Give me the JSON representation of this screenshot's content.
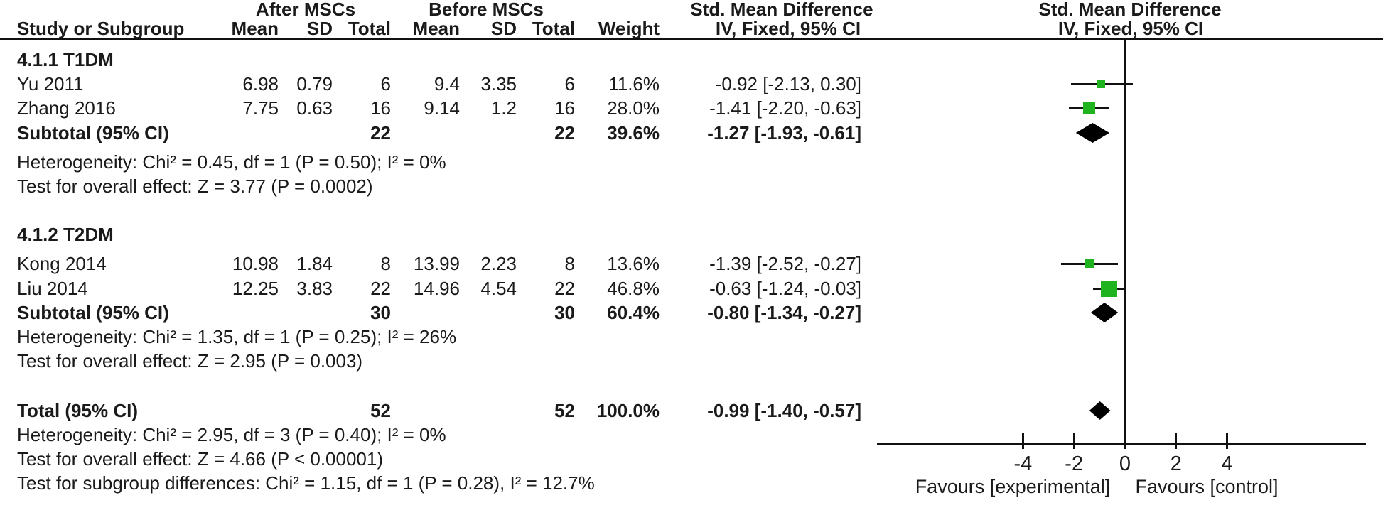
{
  "figure_title": "Forest plot: Std. Mean Difference, After MSCs vs Before MSCs",
  "header": {
    "group1": "After MSCs",
    "group2": "Before MSCs",
    "effect1": "Std. Mean Difference",
    "effect2": "Std. Mean Difference",
    "col_study": "Study or Subgroup",
    "col_mean1": "Mean",
    "col_sd1": "SD",
    "col_total1": "Total",
    "col_mean2": "Mean",
    "col_sd2": "SD",
    "col_total2": "Total",
    "col_weight": "Weight",
    "col_ci1": "IV, Fixed, 95% CI",
    "col_ci2": "IV, Fixed, 95% CI"
  },
  "colors": {
    "square_green": "#1fb41f",
    "diamond_black": "#000000",
    "line_black": "#111111",
    "text": "#1a1a1a"
  },
  "chart_data": {
    "type": "forest",
    "effect_measure": "Std. Mean Difference",
    "model": "IV, Fixed, 95% CI",
    "x_ticks": [
      -4,
      -2,
      0,
      2,
      4
    ],
    "xlim": [
      -9.7,
      9.4
    ],
    "favours_left": "Favours [experimental]",
    "favours_right": "Favours [control]",
    "rows": [
      {
        "kind": "group",
        "label": "4.1.1 T1DM"
      },
      {
        "kind": "study",
        "label": "Yu 2011",
        "mean1": "6.98",
        "sd1": "0.79",
        "n1": "6",
        "mean2": "9.4",
        "sd2": "3.35",
        "n2": "6",
        "weight": "11.6%",
        "ci_text": "-0.92 [-2.13, 0.30]",
        "est": -0.92,
        "lo": -2.13,
        "hi": 0.3,
        "w": 11.6
      },
      {
        "kind": "study",
        "label": "Zhang 2016",
        "mean1": "7.75",
        "sd1": "0.63",
        "n1": "16",
        "mean2": "9.14",
        "sd2": "1.2",
        "n2": "16",
        "weight": "28.0%",
        "ci_text": "-1.41 [-2.20, -0.63]",
        "est": -1.41,
        "lo": -2.2,
        "hi": -0.63,
        "w": 28.0
      },
      {
        "kind": "subtotal",
        "label": "Subtotal (95% CI)",
        "n1": "22",
        "n2": "22",
        "weight": "39.6%",
        "ci_text": "-1.27 [-1.93, -0.61]",
        "est": -1.27,
        "lo": -1.93,
        "hi": -0.61
      },
      {
        "kind": "stat",
        "label": "Heterogeneity: Chi² = 0.45, df = 1 (P = 0.50); I² = 0%"
      },
      {
        "kind": "stat",
        "label": "Test for overall effect: Z = 3.77 (P = 0.0002)"
      },
      {
        "kind": "spacer"
      },
      {
        "kind": "group",
        "label": "4.1.2 T2DM"
      },
      {
        "kind": "study",
        "label": "Kong 2014",
        "mean1": "10.98",
        "sd1": "1.84",
        "n1": "8",
        "mean2": "13.99",
        "sd2": "2.23",
        "n2": "8",
        "weight": "13.6%",
        "ci_text": "-1.39 [-2.52, -0.27]",
        "est": -1.39,
        "lo": -2.52,
        "hi": -0.27,
        "w": 13.6
      },
      {
        "kind": "study",
        "label": "Liu 2014",
        "mean1": "12.25",
        "sd1": "3.83",
        "n1": "22",
        "mean2": "14.96",
        "sd2": "4.54",
        "n2": "22",
        "weight": "46.8%",
        "ci_text": "-0.63 [-1.24, -0.03]",
        "est": -0.63,
        "lo": -1.24,
        "hi": -0.03,
        "w": 46.8
      },
      {
        "kind": "subtotal",
        "label": "Subtotal (95% CI)",
        "n1": "30",
        "n2": "30",
        "weight": "60.4%",
        "ci_text": "-0.80 [-1.34, -0.27]",
        "est": -0.8,
        "lo": -1.34,
        "hi": -0.27
      },
      {
        "kind": "stat",
        "label": "Heterogeneity: Chi² = 1.35, df = 1 (P = 0.25); I² = 26%"
      },
      {
        "kind": "stat",
        "label": "Test for overall effect: Z = 2.95 (P = 0.003)"
      },
      {
        "kind": "spacer"
      },
      {
        "kind": "total",
        "label": "Total (95% CI)",
        "n1": "52",
        "n2": "52",
        "weight": "100.0%",
        "ci_text": "-0.99 [-1.40, -0.57]",
        "est": -0.99,
        "lo": -1.4,
        "hi": -0.57
      },
      {
        "kind": "stat",
        "label": "Heterogeneity: Chi² = 2.95, df = 3 (P = 0.40); I² = 0%"
      },
      {
        "kind": "stat",
        "label": "Test for overall effect: Z = 4.66 (P < 0.00001)"
      },
      {
        "kind": "stat",
        "label": "Test for subgroup differences: Chi² = 1.15, df = 1 (P = 0.28), I² = 12.7%"
      }
    ]
  }
}
